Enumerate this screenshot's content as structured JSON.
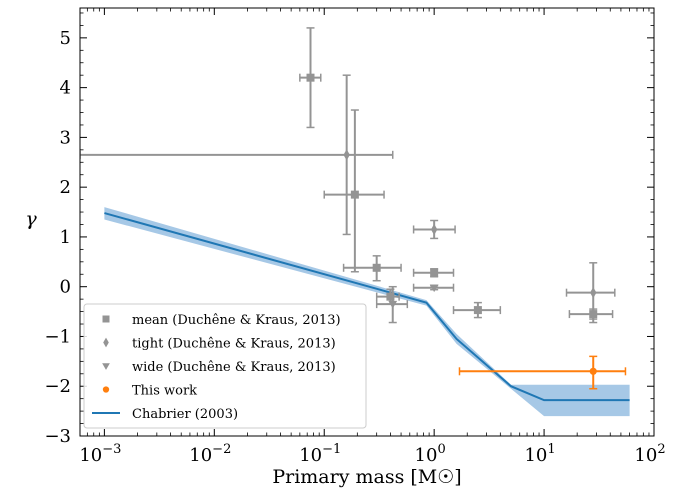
{
  "chart_data": {
    "type": "scatter",
    "xlabel": "Primary mass [M☉]",
    "ylabel": "γ",
    "xscale": "log",
    "xlim": [
      0.0006,
      100
    ],
    "ylim": [
      -3,
      5.6
    ],
    "grid": false,
    "legend_position": "lower-left",
    "x_ticks": [
      {
        "value": 0.001,
        "base": "10",
        "exp": "−3"
      },
      {
        "value": 0.01,
        "base": "10",
        "exp": "−2"
      },
      {
        "value": 0.1,
        "base": "10",
        "exp": "−1"
      },
      {
        "value": 1,
        "base": "10",
        "exp": "0"
      },
      {
        "value": 10,
        "base": "10",
        "exp": "1"
      },
      {
        "value": 100,
        "base": "10",
        "exp": "2"
      }
    ],
    "y_ticks": [
      {
        "value": -3,
        "label": "−3"
      },
      {
        "value": -2,
        "label": "−2"
      },
      {
        "value": -1,
        "label": "−1"
      },
      {
        "value": 0,
        "label": "0"
      },
      {
        "value": 1,
        "label": "1"
      },
      {
        "value": 2,
        "label": "2"
      },
      {
        "value": 3,
        "label": "3"
      },
      {
        "value": 4,
        "label": "4"
      },
      {
        "value": 5,
        "label": "5"
      }
    ],
    "series": [
      {
        "name": "mean (Duchêne & Kraus, 2013)",
        "marker": "square",
        "color": "#949494",
        "points": [
          {
            "x": 0.075,
            "y": 4.2,
            "xlo": 0.06,
            "xhi": 0.093,
            "ylo": 3.2,
            "yhi": 5.2
          },
          {
            "x": 0.19,
            "y": 1.85,
            "xlo": 0.1,
            "xhi": 0.35,
            "ylo": 0.3,
            "yhi": 3.55
          },
          {
            "x": 0.3,
            "y": 0.38,
            "xlo": 0.15,
            "xhi": 0.5,
            "ylo": 0.12,
            "yhi": 0.62
          },
          {
            "x": 0.4,
            "y": -0.2,
            "xlo": 0.3,
            "xhi": 0.48,
            "ylo": -0.35,
            "yhi": -0.05
          },
          {
            "x": 1.0,
            "y": 0.28,
            "xlo": 0.65,
            "xhi": 1.5,
            "ylo": 0.2,
            "yhi": 0.36
          },
          {
            "x": 2.5,
            "y": -0.47,
            "xlo": 1.5,
            "xhi": 4.0,
            "ylo": -0.62,
            "yhi": -0.32
          },
          {
            "x": 28,
            "y": -0.55,
            "xlo": 17,
            "xhi": 42,
            "ylo": -0.65,
            "yhi": -0.45
          }
        ]
      },
      {
        "name": "tight (Duchêne & Kraus, 2013)",
        "marker": "diamond",
        "color": "#949494",
        "points": [
          {
            "x": 0.16,
            "y": 2.65,
            "xlo": 0.0006,
            "xhi": 0.42,
            "ylo": 1.05,
            "yhi": 4.25
          },
          {
            "x": 1.0,
            "y": 1.15,
            "xlo": 0.65,
            "xhi": 1.55,
            "ylo": 0.97,
            "yhi": 1.33
          },
          {
            "x": 28,
            "y": -0.12,
            "xlo": 16,
            "xhi": 44,
            "ylo": -0.72,
            "yhi": 0.48
          }
        ]
      },
      {
        "name": "wide (Duchêne & Kraus, 2013)",
        "marker": "triangle-down",
        "color": "#949494",
        "points": [
          {
            "x": 0.42,
            "y": -0.35,
            "xlo": 0.3,
            "xhi": 0.57,
            "ylo": -0.72,
            "yhi": 0.0
          },
          {
            "x": 1.0,
            "y": -0.02,
            "xlo": 0.65,
            "xhi": 1.5,
            "ylo": -0.06,
            "yhi": 0.02
          }
        ]
      },
      {
        "name": "This work",
        "marker": "circle",
        "color": "#ff7f0e",
        "points": [
          {
            "x": 28,
            "y": -1.7,
            "xlo": 1.7,
            "xhi": 55,
            "ylo": -2.05,
            "yhi": -1.4
          }
        ]
      }
    ],
    "model": {
      "name": "Chabrier (2003)",
      "color": "#1f77b4",
      "band_color": "#a6c8e6",
      "line": [
        {
          "x": 0.001,
          "y": 1.48
        },
        {
          "x": 0.85,
          "y": -0.32
        },
        {
          "x": 1.6,
          "y": -1.05
        },
        {
          "x": 5.0,
          "y": -2.0
        },
        {
          "x": 10,
          "y": -2.28
        },
        {
          "x": 60,
          "y": -2.28
        }
      ],
      "band_upper": [
        {
          "x": 0.001,
          "y": 1.6
        },
        {
          "x": 0.85,
          "y": -0.27
        },
        {
          "x": 1.6,
          "y": -0.95
        },
        {
          "x": 5.0,
          "y": -1.97
        },
        {
          "x": 10,
          "y": -1.97
        },
        {
          "x": 60,
          "y": -1.97
        }
      ],
      "band_lower": [
        {
          "x": 0.001,
          "y": 1.35
        },
        {
          "x": 0.85,
          "y": -0.38
        },
        {
          "x": 1.6,
          "y": -1.15
        },
        {
          "x": 5.0,
          "y": -2.05
        },
        {
          "x": 10,
          "y": -2.6
        },
        {
          "x": 60,
          "y": -2.6
        }
      ]
    }
  }
}
